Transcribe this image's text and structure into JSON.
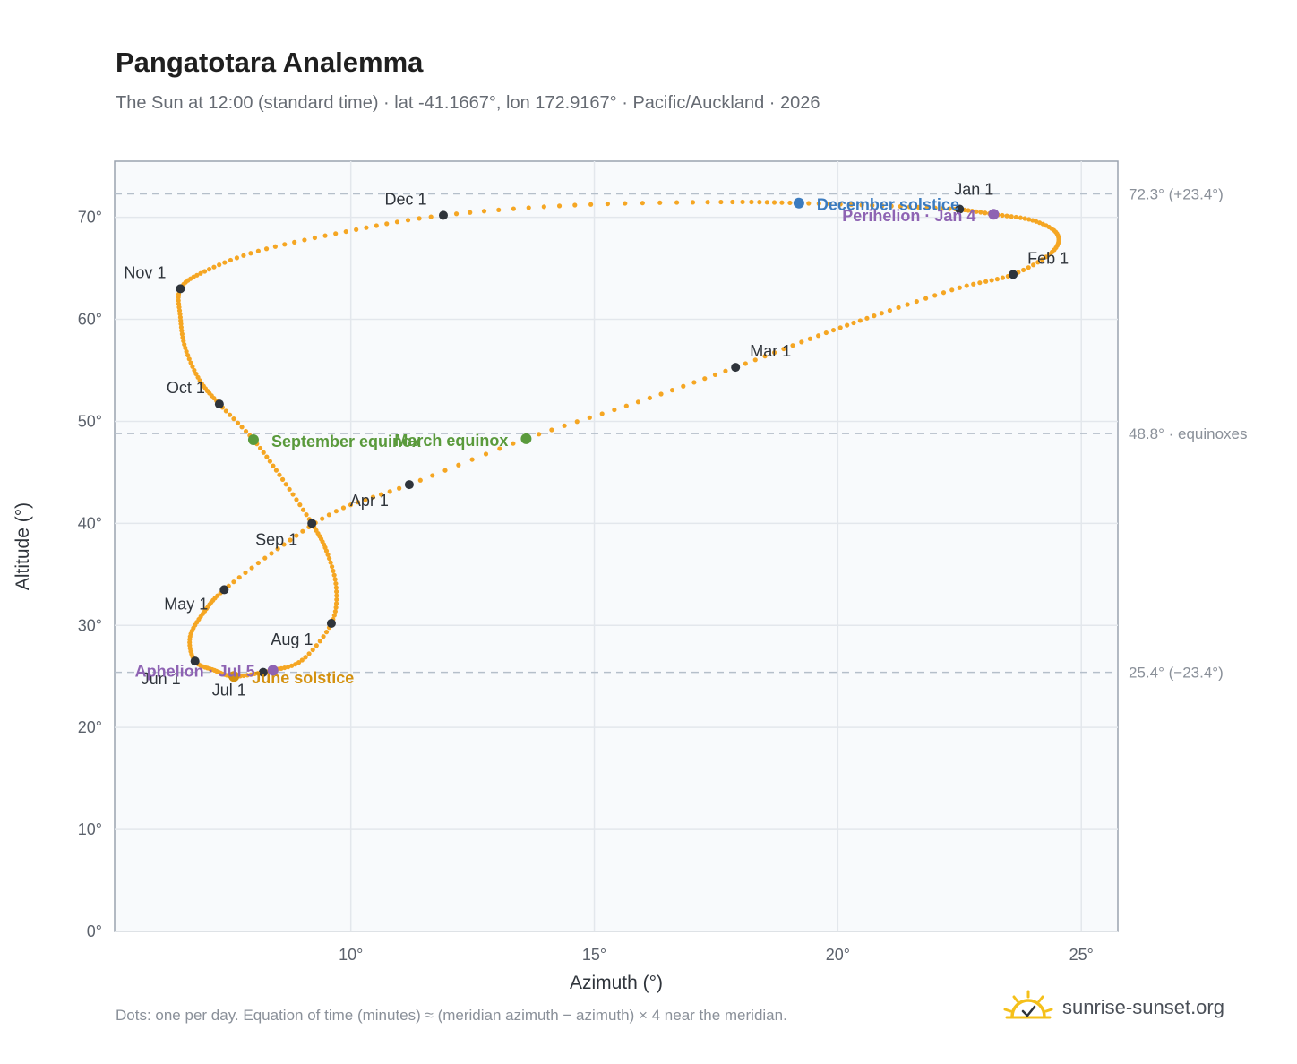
{
  "title": "Pangatotara Analemma",
  "subtitle": "The Sun at 12:00 (standard time) · lat -41.1667°, lon 172.9167° · Pacific/Auckland · 2026",
  "footnote": "Dots: one per day. Equation of time (minutes) ≈ (meridian azimuth − azimuth) × 4 near the meridian.",
  "brand": {
    "name": "sunrise-sunset.org",
    "icon": "sun-logo-icon"
  },
  "colors": {
    "path": "#f5a623",
    "month_dot": "#2f343b",
    "equinox": "#5a9a3c",
    "december_solstice": "#3b7bbf",
    "june_solstice": "#d4910f",
    "perihelion": "#8e63b3",
    "aphelion": "#8e63b3",
    "plot_bg": "#f8fafc",
    "grid": "#e3e7ec",
    "ref_line": "#b5bfca",
    "frame": "#9aa3af"
  },
  "chart_data": {
    "type": "scatter",
    "title": "Pangatotara Analemma",
    "xlabel": "Azimuth (°)",
    "ylabel": "Altitude (°)",
    "xlim": [
      5.15,
      25.75
    ],
    "ylim": [
      0,
      75.5
    ],
    "x_ticks": [
      {
        "v": 10,
        "label": "10°"
      },
      {
        "v": 15,
        "label": "15°"
      },
      {
        "v": 20,
        "label": "20°"
      },
      {
        "v": 25,
        "label": "25°"
      }
    ],
    "y_ticks": [
      {
        "v": 0,
        "label": "0°"
      },
      {
        "v": 10,
        "label": "10°"
      },
      {
        "v": 20,
        "label": "20°"
      },
      {
        "v": 30,
        "label": "30°"
      },
      {
        "v": 40,
        "label": "40°"
      },
      {
        "v": 50,
        "label": "50°"
      },
      {
        "v": 60,
        "label": "60°"
      },
      {
        "v": 70,
        "label": "70°"
      }
    ],
    "grid": true,
    "reference_lines": [
      {
        "y": 72.3,
        "label": "72.3° (+23.4°)"
      },
      {
        "y": 48.8,
        "label": "48.8° · equinoxes"
      },
      {
        "y": 25.4,
        "label": "25.4° (−23.4°)"
      }
    ],
    "month_markers": [
      {
        "label": "Jan 1",
        "x": 22.5,
        "y": 70.8
      },
      {
        "label": "Feb 1",
        "x": 23.6,
        "y": 64.4
      },
      {
        "label": "Mar 1",
        "x": 17.9,
        "y": 55.3
      },
      {
        "label": "Apr 1",
        "x": 11.2,
        "y": 43.8
      },
      {
        "label": "May 1",
        "x": 7.4,
        "y": 33.5
      },
      {
        "label": "Jun 1",
        "x": 6.8,
        "y": 26.5
      },
      {
        "label": "Jul 1",
        "x": 8.2,
        "y": 25.4
      },
      {
        "label": "Aug 1",
        "x": 9.6,
        "y": 30.2
      },
      {
        "label": "Sep 1",
        "x": 9.2,
        "y": 40.0
      },
      {
        "label": "Oct 1",
        "x": 7.3,
        "y": 51.7
      },
      {
        "label": "Nov 1",
        "x": 6.5,
        "y": 63.0
      },
      {
        "label": "Dec 1",
        "x": 11.9,
        "y": 70.2
      }
    ],
    "events": [
      {
        "label": "December solstice",
        "x": 19.2,
        "y": 71.4,
        "color_key": "december_solstice"
      },
      {
        "label": "Perihelion · Jan 4",
        "x": 23.2,
        "y": 70.3,
        "color_key": "perihelion"
      },
      {
        "label": "March equinox",
        "x": 13.6,
        "y": 48.3,
        "color_key": "equinox"
      },
      {
        "label": "September equinox",
        "x": 8.0,
        "y": 48.2,
        "color_key": "equinox"
      },
      {
        "label": "June solstice",
        "x": 7.6,
        "y": 25.0,
        "color_key": "june_solstice"
      },
      {
        "label": "Aphelion · Jul 5",
        "x": 8.4,
        "y": 25.6,
        "color_key": "aphelion"
      }
    ],
    "analemma_path": [
      [
        22.5,
        70.8
      ],
      [
        23.2,
        70.3
      ],
      [
        24.0,
        69.7
      ],
      [
        24.5,
        68.4
      ],
      [
        24.4,
        66.6
      ],
      [
        23.6,
        64.4
      ],
      [
        22.5,
        63.1
      ],
      [
        20.9,
        60.6
      ],
      [
        19.6,
        58.4
      ],
      [
        17.9,
        55.3
      ],
      [
        15.9,
        51.9
      ],
      [
        13.6,
        48.3
      ],
      [
        11.2,
        43.8
      ],
      [
        9.7,
        41.2
      ],
      [
        8.5,
        37.5
      ],
      [
        7.4,
        33.5
      ],
      [
        7.0,
        31.4
      ],
      [
        6.7,
        28.9
      ],
      [
        6.8,
        26.5
      ],
      [
        7.2,
        25.6
      ],
      [
        7.6,
        25.0
      ],
      [
        8.2,
        25.4
      ],
      [
        8.4,
        25.6
      ],
      [
        9.0,
        26.6
      ],
      [
        9.6,
        30.2
      ],
      [
        9.7,
        33.7
      ],
      [
        9.5,
        37.3
      ],
      [
        9.2,
        40.0
      ],
      [
        8.6,
        44.3
      ],
      [
        8.0,
        48.2
      ],
      [
        7.3,
        51.7
      ],
      [
        6.9,
        54.0
      ],
      [
        6.6,
        57.2
      ],
      [
        6.5,
        60.2
      ],
      [
        6.5,
        63.0
      ],
      [
        7.0,
        64.7
      ],
      [
        8.1,
        66.7
      ],
      [
        9.9,
        68.6
      ],
      [
        11.9,
        70.2
      ],
      [
        14.6,
        71.2
      ],
      [
        17.6,
        71.5
      ],
      [
        19.2,
        71.4
      ],
      [
        21.1,
        71.1
      ],
      [
        22.5,
        70.8
      ]
    ]
  }
}
